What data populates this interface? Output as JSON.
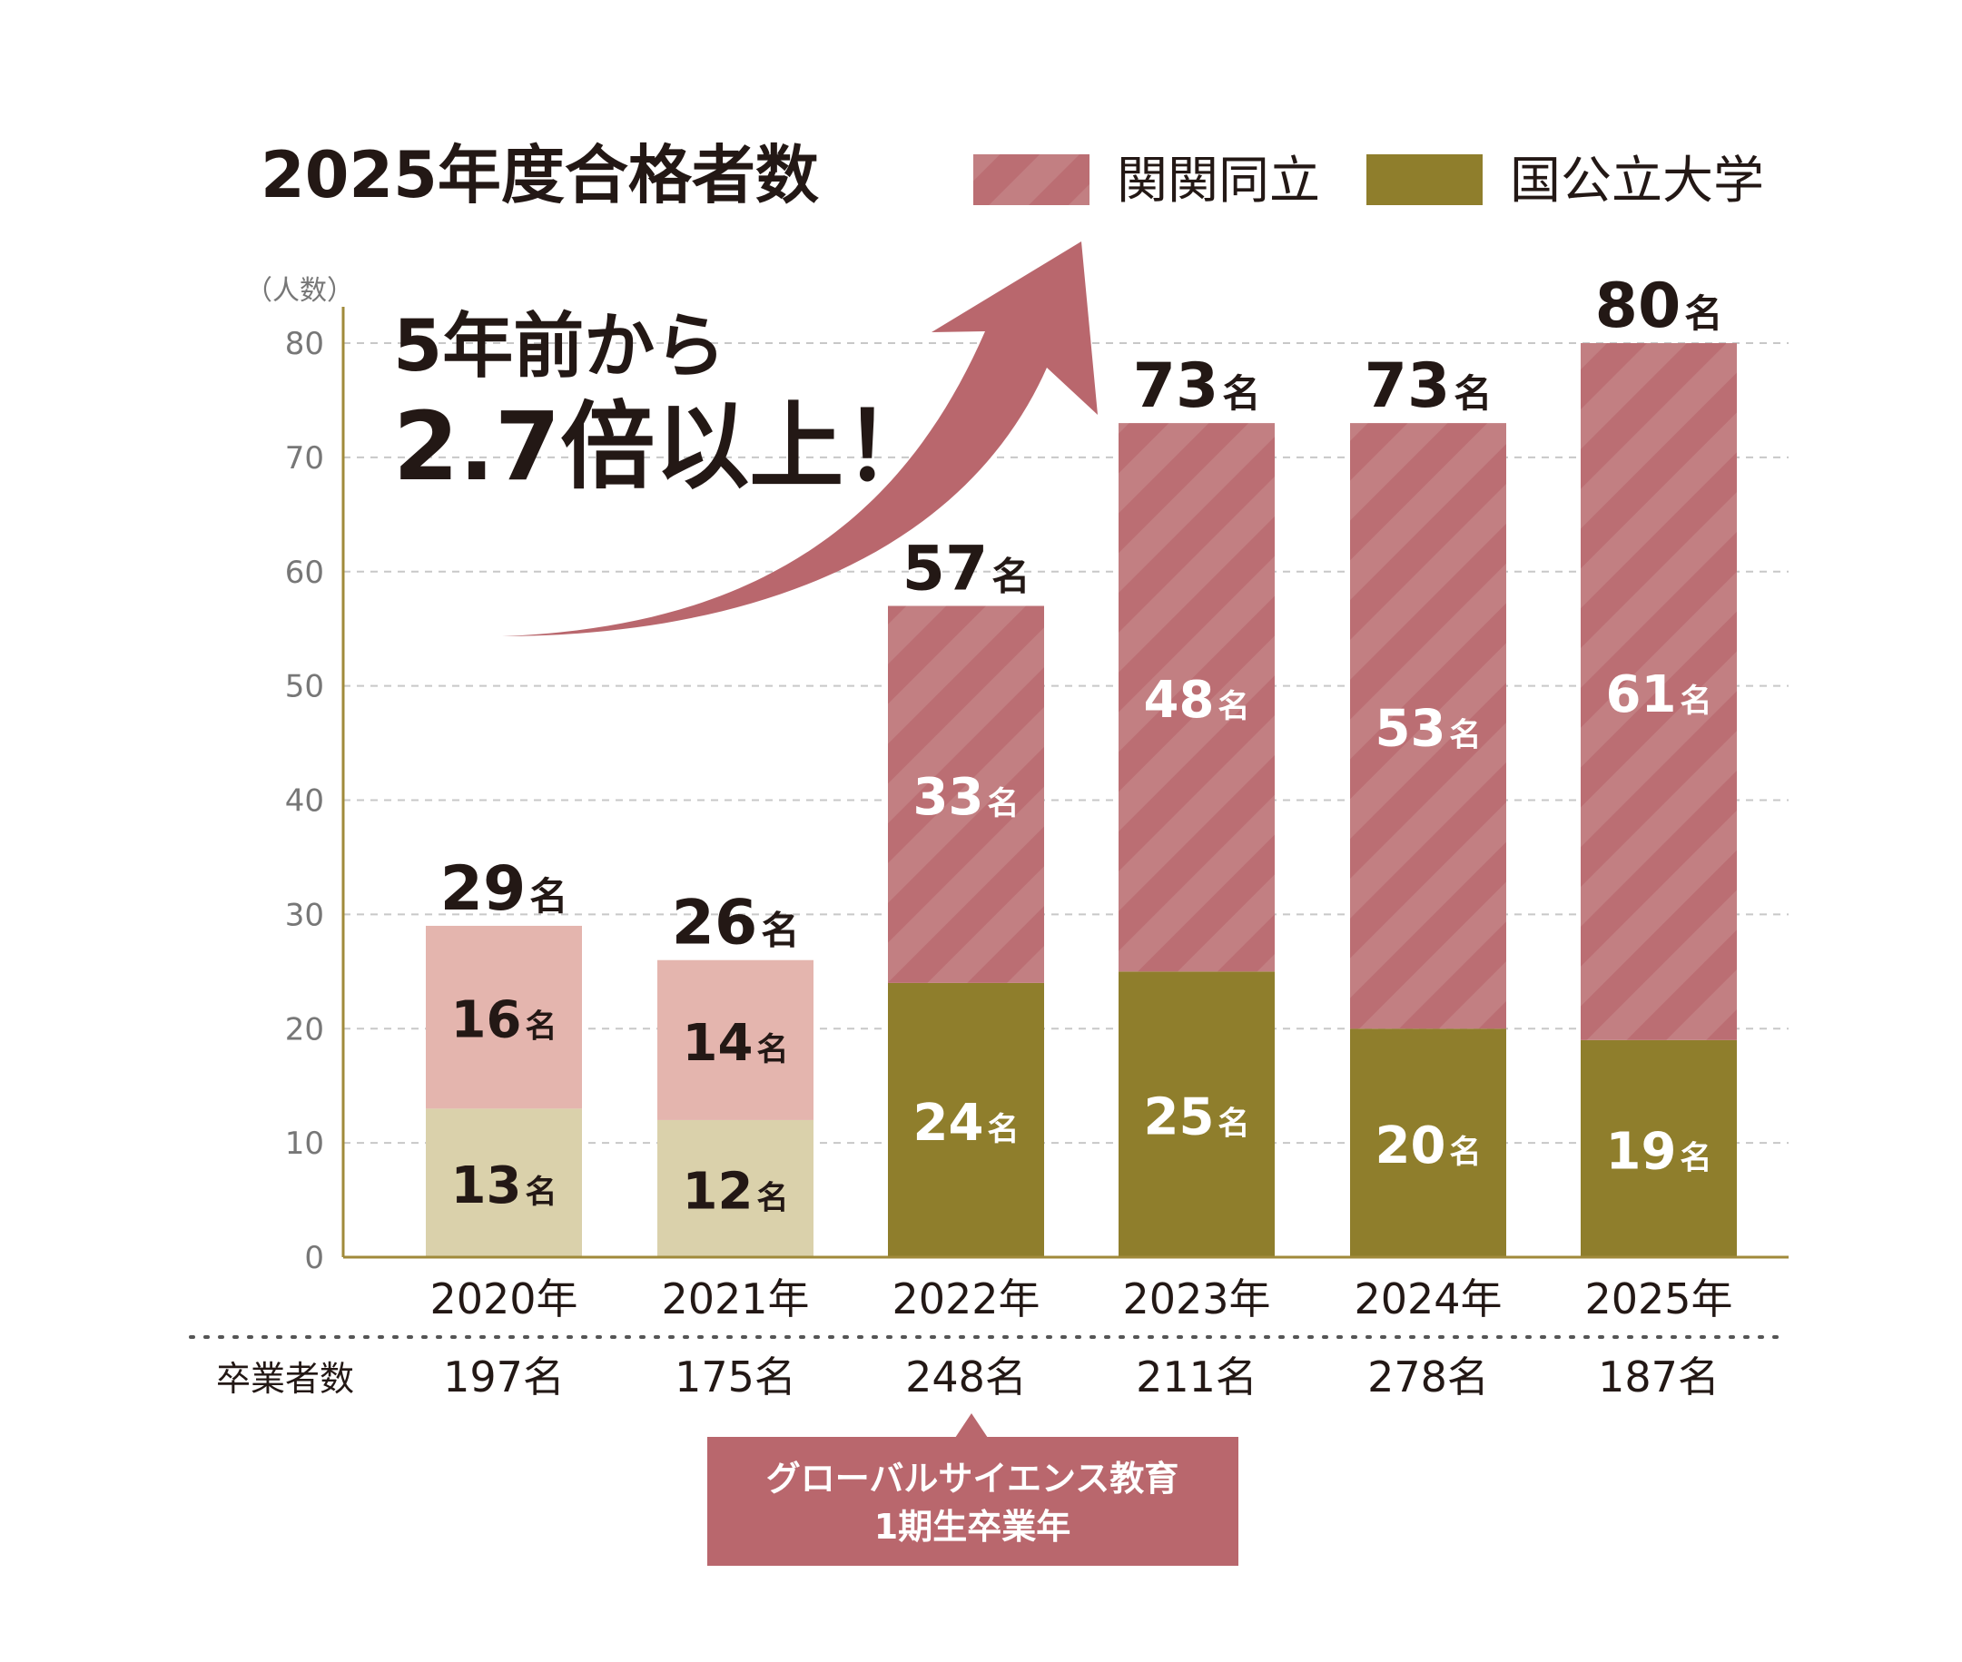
{
  "title": "2025年度合格者数",
  "legend": [
    {
      "label": "関関同立",
      "color": "#bb6e73"
    },
    {
      "label": "国公立大学",
      "color": "#8f7e2c"
    }
  ],
  "y_unit_label": "（人数）",
  "headline": {
    "line1": "5年前から",
    "line2": "2.7倍以上！"
  },
  "row_label": "卒業者数",
  "callout": {
    "line1": "グローバルサイエンス教育",
    "line2": "1期生卒業年"
  },
  "chart_data": {
    "type": "bar",
    "stacked": true,
    "categories": [
      "2020年",
      "2021年",
      "2022年",
      "2023年",
      "2024年",
      "2025年"
    ],
    "series": [
      {
        "name": "国公立大学",
        "values": [
          13,
          12,
          24,
          25,
          20,
          19
        ],
        "labels": [
          "13名",
          "12名",
          "24名",
          "25名",
          "20名",
          "19名"
        ]
      },
      {
        "name": "関関同立",
        "values": [
          16,
          14,
          33,
          48,
          53,
          61
        ],
        "labels": [
          "16名",
          "14名",
          "33名",
          "48名",
          "53名",
          "61名"
        ]
      }
    ],
    "totals": [
      29,
      26,
      57,
      73,
      73,
      80
    ],
    "total_unit": "名",
    "graduates": [
      "197名",
      "175名",
      "248名",
      "211名",
      "278名",
      "187名"
    ],
    "ylim": [
      0,
      80
    ],
    "yticks": [
      0,
      10,
      20,
      30,
      40,
      50,
      60,
      70,
      80
    ],
    "grid": true,
    "legend_position": "top-right",
    "colors": {
      "kankandoritsu": "#bb6e73",
      "kankandoritsu_stripe": "#c27f82",
      "kokkoritsu": "#8f7e2c",
      "kankandoritsu_light": "#e4b5ae",
      "kokkoritsu_light": "#dad1ab",
      "arrow": "#b9676d",
      "axis": "#a08a3a"
    }
  }
}
